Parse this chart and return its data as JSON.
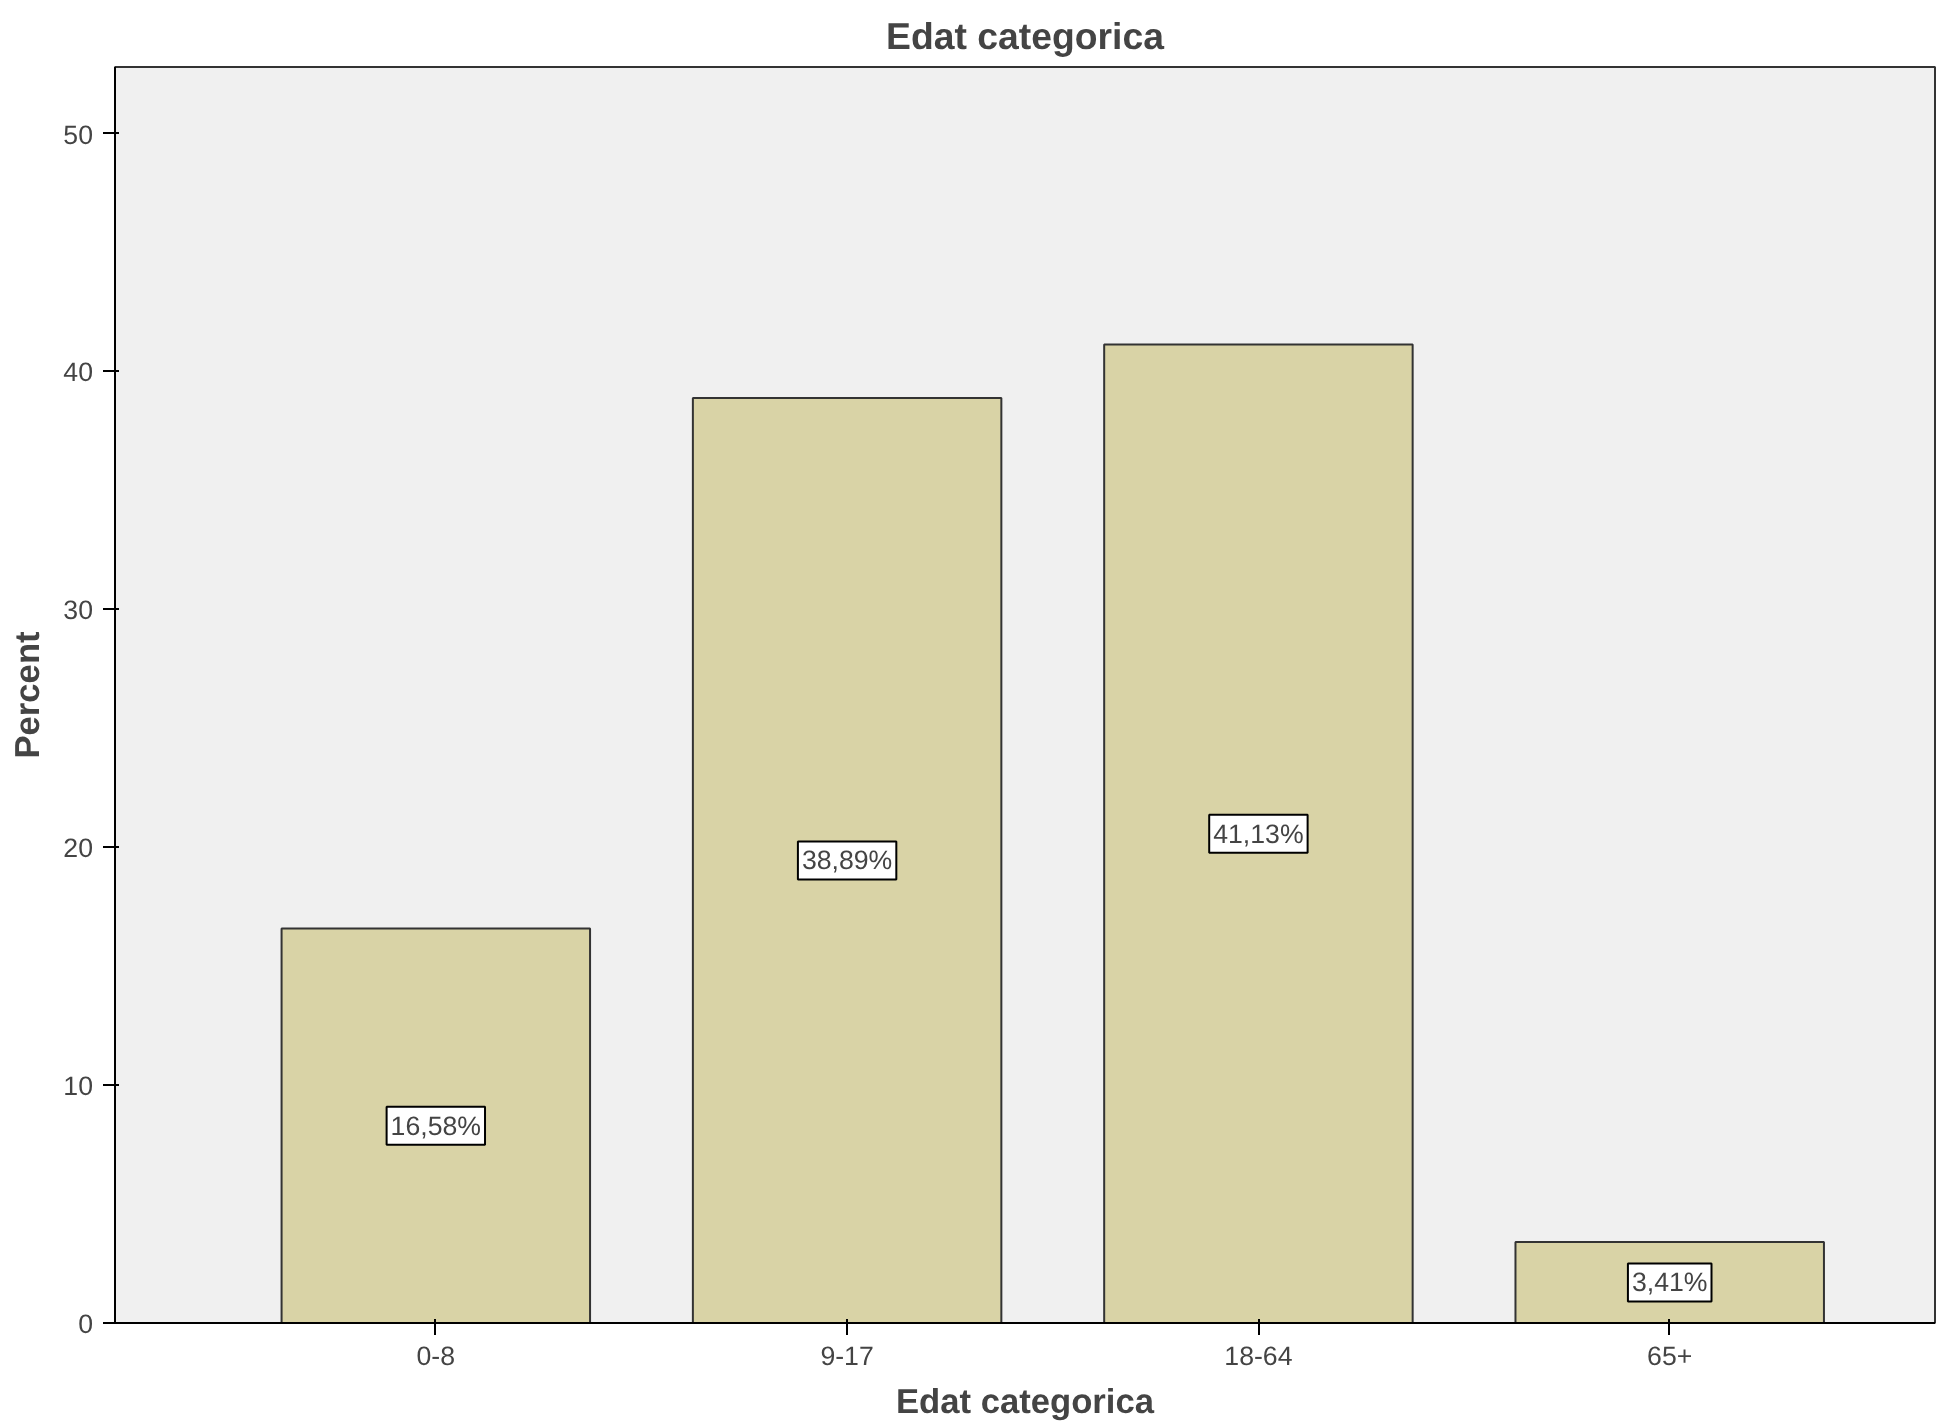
{
  "chart_data": {
    "type": "bar",
    "title": "Edat categorica",
    "xlabel": "Edat categorica",
    "ylabel": "Percent",
    "categories": [
      "0-8",
      "9-17",
      "18-64",
      "65+"
    ],
    "values": [
      16.58,
      38.89,
      41.13,
      3.41
    ],
    "value_labels": [
      "16,58%",
      "38,89%",
      "41,13%",
      "3,41%"
    ],
    "color": "#d9d3a6",
    "ylim": [
      0,
      52.8
    ],
    "yticks": [
      0,
      10,
      20,
      30,
      40,
      50
    ],
    "grid": false
  }
}
